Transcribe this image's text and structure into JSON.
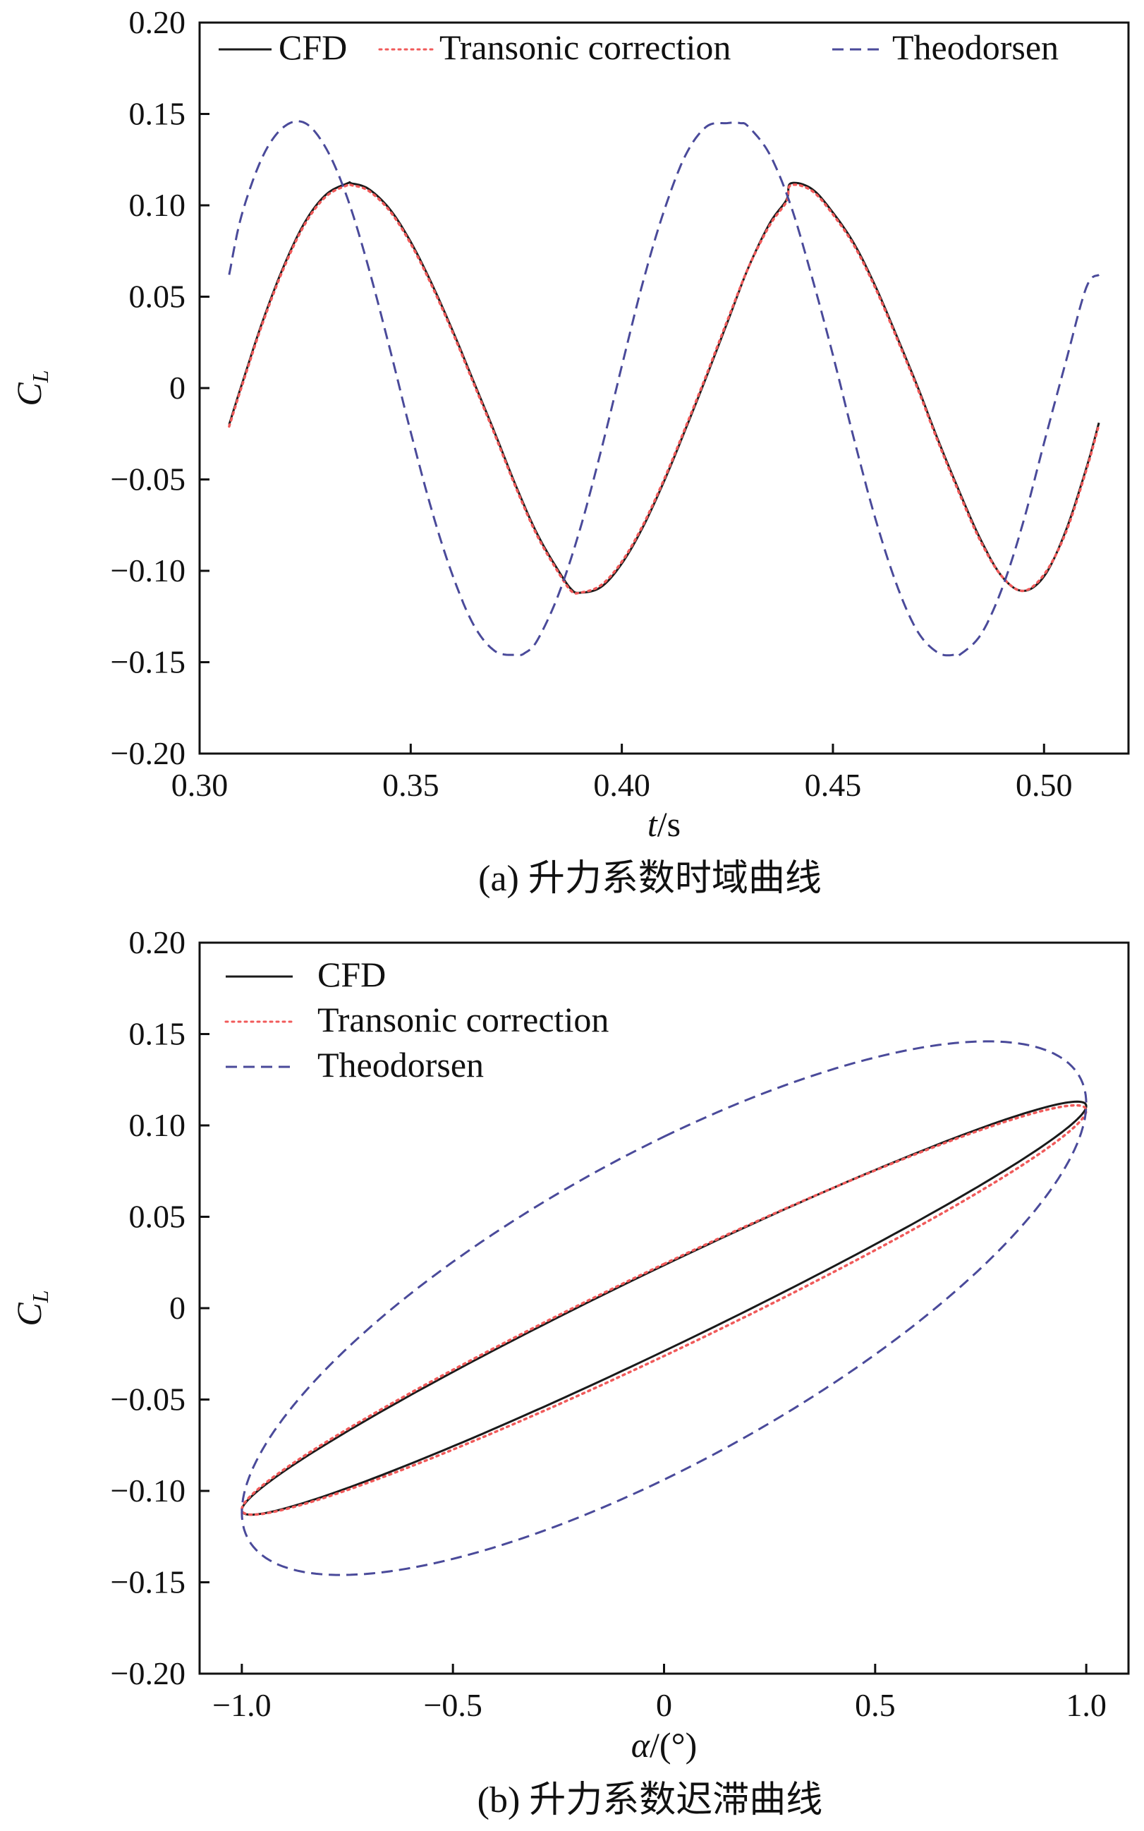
{
  "chart_data": [
    {
      "id": "a",
      "type": "line",
      "caption": "(a) 升力系数时域曲线",
      "xlabel": {
        "main": "t",
        "suffix": "/s"
      },
      "ylabel": {
        "main": "C",
        "sub": "L"
      },
      "xlim": [
        0.3,
        0.52
      ],
      "ylim": [
        -0.2,
        0.2
      ],
      "xticks": [
        0.3,
        0.35,
        0.4,
        0.45,
        0.5
      ],
      "xtick_labels": [
        "0.30",
        "0.35",
        "0.40",
        "0.45",
        "0.50"
      ],
      "yticks": [
        -0.2,
        -0.15,
        -0.1,
        -0.05,
        0,
        0.05,
        0.1,
        0.15,
        0.2
      ],
      "ytick_labels": [
        "−0.20",
        "−0.15",
        "−0.10",
        "−0.05",
        "0",
        "0.05",
        "0.10",
        "0.15",
        "0.20"
      ],
      "legend": {
        "placement": "top",
        "layout": "horizontal"
      },
      "series": [
        {
          "name": "CFD",
          "style": "solid",
          "color": "#1a1a1a",
          "x": [
            0.307,
            0.31,
            0.315,
            0.32,
            0.325,
            0.33,
            0.335,
            0.336,
            0.34,
            0.345,
            0.35,
            0.355,
            0.36,
            0.365,
            0.37,
            0.375,
            0.38,
            0.385,
            0.388,
            0.39,
            0.395,
            0.4,
            0.405,
            0.41,
            0.415,
            0.42,
            0.425,
            0.43,
            0.435,
            0.439,
            0.44,
            0.445,
            0.45,
            0.455,
            0.46,
            0.465,
            0.47,
            0.475,
            0.48,
            0.485,
            0.49,
            0.495,
            0.5,
            0.505,
            0.51,
            0.513
          ],
          "y": [
            -0.02,
            0.002,
            0.037,
            0.067,
            0.091,
            0.106,
            0.112,
            0.112,
            0.109,
            0.098,
            0.08,
            0.057,
            0.031,
            0.003,
            -0.025,
            -0.054,
            -0.08,
            -0.1,
            -0.11,
            -0.112,
            -0.109,
            -0.096,
            -0.076,
            -0.051,
            -0.023,
            0.006,
            0.036,
            0.066,
            0.09,
            0.103,
            0.112,
            0.109,
            0.096,
            0.079,
            0.056,
            0.029,
            0.001,
            -0.029,
            -0.057,
            -0.083,
            -0.103,
            -0.111,
            -0.103,
            -0.079,
            -0.044,
            -0.019
          ]
        },
        {
          "name": "Transonic correction",
          "style": "dotted",
          "color": "#f05a5a",
          "x": [
            0.307,
            0.31,
            0.315,
            0.32,
            0.325,
            0.33,
            0.335,
            0.336,
            0.34,
            0.345,
            0.35,
            0.355,
            0.36,
            0.365,
            0.37,
            0.375,
            0.38,
            0.385,
            0.388,
            0.39,
            0.395,
            0.4,
            0.405,
            0.41,
            0.415,
            0.42,
            0.425,
            0.43,
            0.435,
            0.439,
            0.44,
            0.445,
            0.45,
            0.455,
            0.46,
            0.465,
            0.47,
            0.475,
            0.48,
            0.485,
            0.49,
            0.495,
            0.5,
            0.505,
            0.51,
            0.513
          ],
          "y": [
            -0.021,
            0.001,
            0.036,
            0.066,
            0.09,
            0.105,
            0.111,
            0.111,
            0.108,
            0.097,
            0.079,
            0.056,
            0.03,
            0.002,
            -0.026,
            -0.055,
            -0.081,
            -0.101,
            -0.111,
            -0.112,
            -0.108,
            -0.095,
            -0.075,
            -0.05,
            -0.022,
            0.007,
            0.037,
            0.066,
            0.089,
            0.102,
            0.111,
            0.108,
            0.095,
            0.078,
            0.055,
            0.028,
            0.0,
            -0.03,
            -0.058,
            -0.084,
            -0.103,
            -0.111,
            -0.102,
            -0.08,
            -0.045,
            -0.02
          ]
        },
        {
          "name": "Theodorsen",
          "style": "dashed",
          "color": "#4a4a9a",
          "x": [
            0.307,
            0.31,
            0.315,
            0.32,
            0.325,
            0.33,
            0.335,
            0.34,
            0.345,
            0.35,
            0.355,
            0.36,
            0.365,
            0.37,
            0.375,
            0.377,
            0.38,
            0.385,
            0.39,
            0.395,
            0.4,
            0.405,
            0.41,
            0.415,
            0.42,
            0.425,
            0.428,
            0.43,
            0.435,
            0.44,
            0.445,
            0.45,
            0.455,
            0.46,
            0.465,
            0.47,
            0.475,
            0.479,
            0.48,
            0.485,
            0.49,
            0.495,
            0.5,
            0.505,
            0.51,
            0.513
          ],
          "y": [
            0.062,
            0.095,
            0.127,
            0.143,
            0.145,
            0.131,
            0.104,
            0.066,
            0.022,
            -0.024,
            -0.067,
            -0.103,
            -0.13,
            -0.144,
            -0.146,
            -0.145,
            -0.138,
            -0.113,
            -0.078,
            -0.035,
            0.012,
            0.058,
            0.097,
            0.127,
            0.143,
            0.145,
            0.145,
            0.143,
            0.128,
            0.1,
            0.061,
            0.018,
            -0.028,
            -0.071,
            -0.107,
            -0.133,
            -0.145,
            -0.146,
            -0.146,
            -0.135,
            -0.11,
            -0.074,
            -0.03,
            0.013,
            0.055,
            0.062
          ]
        }
      ]
    },
    {
      "id": "b",
      "type": "line",
      "caption": "(b) 升力系数迟滞曲线",
      "xlabel": {
        "main": "α",
        "suffix": "/(°)"
      },
      "ylabel": {
        "main": "C",
        "sub": "L"
      },
      "xlim": [
        -1.1,
        1.1
      ],
      "ylim": [
        -0.2,
        0.2
      ],
      "xticks": [
        -1.0,
        -0.5,
        0,
        0.5,
        1.0
      ],
      "xtick_labels": [
        "−1.0",
        "−0.5",
        "0",
        "0.5",
        "1.0"
      ],
      "yticks": [
        -0.2,
        -0.15,
        -0.1,
        -0.05,
        0,
        0.05,
        0.1,
        0.15,
        0.2
      ],
      "ytick_labels": [
        "−0.20",
        "−0.15",
        "−0.10",
        "−0.05",
        "0",
        "0.05",
        "0.10",
        "0.15",
        "0.20"
      ],
      "legend": {
        "placement": "top-left",
        "layout": "vertical"
      },
      "series": [
        {
          "name": "CFD",
          "style": "solid",
          "color": "#1a1a1a",
          "loop": {
            "alpha_amplitude": 1.0,
            "cl_amplitude": 0.113,
            "phase_deg": 12,
            "offset": 0
          }
        },
        {
          "name": "Transonic correction",
          "style": "dotted",
          "color": "#f05a5a",
          "loop": {
            "alpha_amplitude": 1.0,
            "cl_amplitude": 0.112,
            "phase_deg": 13,
            "offset": -0.001
          }
        },
        {
          "name": "Theodorsen",
          "style": "dashed",
          "color": "#4a4a9a",
          "loop": {
            "alpha_amplitude": 1.0,
            "cl_amplitude": 0.146,
            "phase_deg": 40,
            "offset": 0
          }
        }
      ]
    }
  ]
}
